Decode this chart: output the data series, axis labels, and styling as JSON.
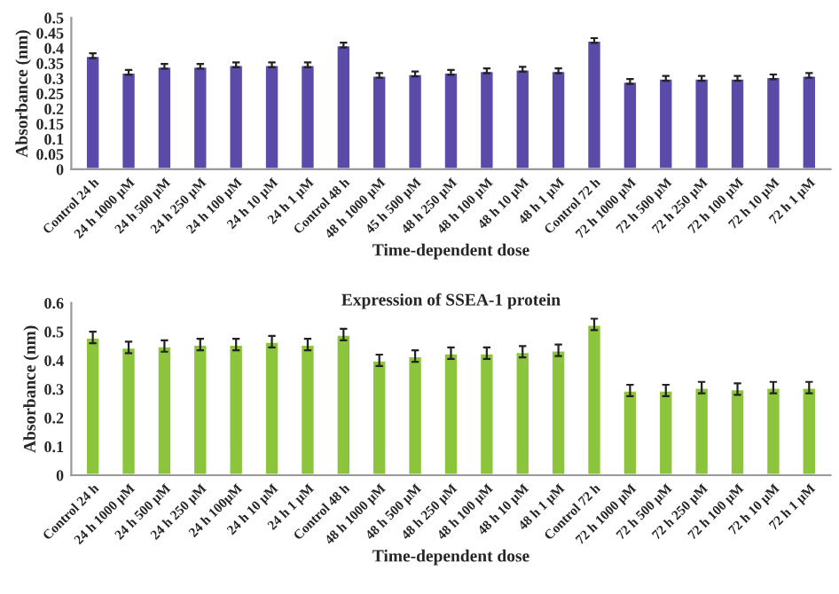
{
  "chart_data": [
    {
      "type": "bar",
      "xlabel": "Time-dependent dose",
      "ylabel": "Absorbance (nm)",
      "categories": [
        "Control 24 h",
        "24 h 1000 µM",
        "24 h 500 µM",
        "24 h 250 µM",
        "24 h 100 µM",
        "24 h 10 µM",
        "24 h 1 µM",
        "Control 48 h",
        "48 h 1000 µM",
        "45 h 500 µM",
        "48 h 250 µM",
        "48 h 100 µM",
        "48 h 10 µM",
        "48 h 1 µM",
        "Control 72 h",
        "72 h 1000 µM",
        "72 h 500 µM",
        "72 h 250 µM",
        "72 h 100 µM",
        "72 h 10 µM",
        "72 h 1 µM"
      ],
      "series": [
        {
          "color": "#5b4aa8",
          "values": [
            0.375,
            0.32,
            0.34,
            0.34,
            0.345,
            0.345,
            0.345,
            0.41,
            0.31,
            0.315,
            0.32,
            0.325,
            0.33,
            0.325,
            0.425,
            0.29,
            0.3,
            0.3,
            0.3,
            0.305,
            0.31
          ],
          "errors": [
            0.008,
            0.008,
            0.008,
            0.008,
            0.008,
            0.008,
            0.008,
            0.008,
            0.008,
            0.008,
            0.008,
            0.008,
            0.008,
            0.008,
            0.008,
            0.008,
            0.008,
            0.008,
            0.008,
            0.008,
            0.008
          ]
        }
      ],
      "ylim": [
        0,
        0.5
      ],
      "yticks": [
        0,
        0.05,
        0.1,
        0.15,
        0.2,
        0.25,
        0.3,
        0.35,
        0.4,
        0.45,
        0.5
      ],
      "grid": false,
      "legend": false
    },
    {
      "type": "bar",
      "title": "Expression of SSEA-1 protein",
      "xlabel": "Time-dependent dose",
      "ylabel": "Absorbance (nm)",
      "categories": [
        "Control 24 h",
        "24 h 1000 µM",
        "24 h 500 µM",
        "24 h 250 µM",
        "24 h 100µM",
        "24 h 10 µM",
        "24 h 1 µM",
        "Control 48 h",
        "48 h 1000 µM",
        "48 h 500 µM",
        "48 h 250 µM",
        "48 h 100 µM",
        "48 h 10 µM",
        "48 h 1 µM",
        "Control 72 h",
        "72 h 1000 µM",
        "72 h 500 µM",
        "72 h 250 µM",
        "72 h 100 µM",
        "72 h 10 µM",
        "72 h 1 µM"
      ],
      "series": [
        {
          "color": "#8cc43c",
          "values": [
            0.48,
            0.445,
            0.45,
            0.455,
            0.455,
            0.465,
            0.455,
            0.49,
            0.4,
            0.415,
            0.425,
            0.425,
            0.43,
            0.435,
            0.525,
            0.295,
            0.295,
            0.305,
            0.3,
            0.305,
            0.305
          ],
          "errors": [
            0.02,
            0.02,
            0.02,
            0.02,
            0.02,
            0.02,
            0.02,
            0.02,
            0.02,
            0.02,
            0.02,
            0.02,
            0.02,
            0.02,
            0.02,
            0.02,
            0.02,
            0.02,
            0.02,
            0.02,
            0.02
          ]
        }
      ],
      "ylim": [
        0,
        0.6
      ],
      "yticks": [
        0,
        0.1,
        0.2,
        0.3,
        0.4,
        0.5,
        0.6
      ],
      "grid": false,
      "legend": false
    }
  ]
}
